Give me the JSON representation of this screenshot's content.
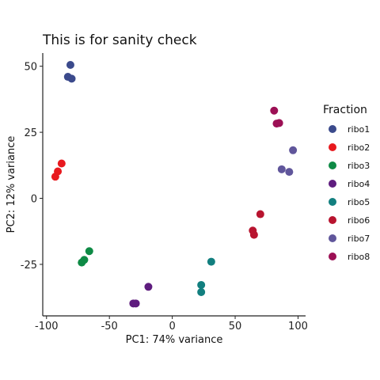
{
  "chart_data": {
    "type": "scatter",
    "title": "This is for sanity check",
    "xlabel": "PC1: 74% variance",
    "ylabel": "PC2: 12% variance",
    "xlim": [
      -103,
      106
    ],
    "ylim": [
      -44.5,
      55
    ],
    "x_ticks": [
      -100,
      -50,
      0,
      50,
      100
    ],
    "x_tick_labels": [
      "-100",
      "-50",
      "0",
      "50",
      "100"
    ],
    "y_ticks": [
      -25,
      0,
      25,
      50
    ],
    "y_tick_labels": [
      "-25",
      "0",
      "25",
      "50"
    ],
    "grid": false,
    "legend": {
      "title": "Fraction",
      "placement": "right"
    },
    "series": [
      {
        "name": "ribo1",
        "color": "#3b4a8c",
        "points": [
          [
            -81,
            50.5
          ],
          [
            -83,
            46
          ],
          [
            -80,
            45.3
          ]
        ]
      },
      {
        "name": "ribo2",
        "color": "#e8191e",
        "points": [
          [
            -93,
            8.2
          ],
          [
            -91,
            10.2
          ],
          [
            -88,
            13.2
          ]
        ]
      },
      {
        "name": "ribo3",
        "color": "#0e8a45",
        "points": [
          [
            -66,
            -20
          ],
          [
            -70,
            -23.3
          ],
          [
            -72,
            -24.3
          ]
        ]
      },
      {
        "name": "ribo4",
        "color": "#5e1c7e",
        "points": [
          [
            -19,
            -33.5
          ],
          [
            -29,
            -39.8
          ],
          [
            -31,
            -39.8
          ]
        ]
      },
      {
        "name": "ribo5",
        "color": "#127f7f",
        "points": [
          [
            31,
            -24
          ],
          [
            23,
            -32.8
          ],
          [
            23,
            -35.5
          ]
        ]
      },
      {
        "name": "ribo6",
        "color": "#b8142f",
        "points": [
          [
            70,
            -6
          ],
          [
            64,
            -12.2
          ],
          [
            65,
            -13.8
          ]
        ]
      },
      {
        "name": "ribo7",
        "color": "#60569b",
        "points": [
          [
            96,
            18.2
          ],
          [
            87,
            11
          ],
          [
            93,
            10
          ]
        ]
      },
      {
        "name": "ribo8",
        "color": "#9c1055",
        "points": [
          [
            81,
            33.2
          ],
          [
            83,
            28.3
          ],
          [
            85,
            28.5
          ]
        ]
      }
    ]
  }
}
